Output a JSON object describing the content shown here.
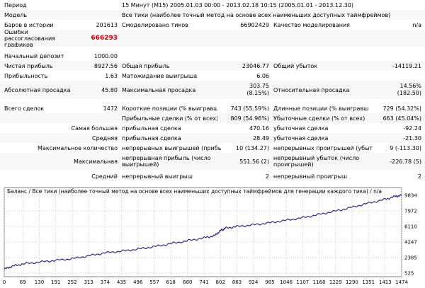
{
  "report": {
    "period_label": "Период",
    "period_value": "15 Минут (M15) 2005.01.03 00:00 - 2013.02.18 10:15 (2005.01.01 - 2013.12.30)",
    "model_label": "Модель",
    "model_value": "Все тики (наиболее точный метод на основе всех наименьших доступных таймфреймов)",
    "bars_label": "Баров в истории",
    "bars_value": "201613",
    "ticks_label": "Смоделировано тиков",
    "ticks_value": "66902429",
    "quality_label": "Качество моделирования",
    "quality_value": "n/a",
    "errors_label": "Ошибки рассогласования графиков",
    "errors_value": "666293",
    "deposit_label": "Начальный депозит",
    "deposit_value": "1000.00",
    "net_profit_label": "Чистая прибыль",
    "net_profit_value": "8927.56",
    "gross_profit_label": "Общая прибыль",
    "gross_profit_value": "23046.77",
    "gross_loss_label": "Общий убыток",
    "gross_loss_value": "-14119.21",
    "profit_factor_label": "Прибыльность",
    "profit_factor_value": "1.63",
    "expected_payoff_label": "Матожидание выигрыша",
    "expected_payoff_value": "6.06",
    "abs_drawdown_label": "Абсолютная просадка",
    "abs_drawdown_value": "45.80",
    "max_drawdown_label": "Максимальная просадка",
    "max_drawdown_value1": "303.75",
    "max_drawdown_value2": "(8.15%)",
    "rel_drawdown_label": "Относительная просадка",
    "rel_drawdown_value1": "14.56%",
    "rel_drawdown_value2": "(182.50)",
    "total_trades_label": "Всего сделок",
    "total_trades_value": "1472",
    "short_label": "Короткие позиции (% выигравших)",
    "short_value": "743 (55.59%)",
    "long_label": "Длинные позиции (% выигравших)",
    "long_value": "729 (54.32%)",
    "profit_trades_label": "Прибыльные сделки (% от всех)",
    "profit_trades_value": "809 (54.96%)",
    "loss_trades_label": "Убыточные сделки (% от всех)",
    "loss_trades_value": "663 (45.04%)",
    "largest_label": "Самая большая",
    "largest_profit_label": "прибыльная сделка",
    "largest_profit_value": "470.16",
    "largest_loss_label": "убыточная сделка",
    "largest_loss_value": "-92.24",
    "average_label": "Средняя",
    "average_profit_label": "прибыльная сделка",
    "average_profit_value": "28.49",
    "average_loss_label": "убыточная сделка",
    "average_loss_value": "-21.30",
    "max_count_label": "Максимальное количество",
    "max_cons_wins_label": "непрерывных выигрышей (прибыль)",
    "max_cons_wins_value": "10 (134.27)",
    "max_cons_losses_label": "непрерывных проигрышей (убыток)",
    "max_cons_losses_value": "9 (-113.30)",
    "maximal_label": "Максимальная",
    "max_cons_profit_label": "непрерывная прибыль (число выигрышей)",
    "max_cons_profit_value": "551.56 (2)",
    "max_cons_loss_label": "непрерывный убыток (число проигрышей)",
    "max_cons_loss_value": "-226.78 (5)",
    "avg_cons_label": "Средний",
    "avg_cons_wins_label": "непрерывный выигрыш",
    "avg_cons_wins_value": "2",
    "avg_cons_losses_label": "непрерывный проигрыш",
    "avg_cons_losses_value": "2"
  },
  "chart_data": {
    "type": "line",
    "title": "Баланс / Все тики (наиболее точный метод на основе всех наименьших доступных таймфреймов для генерации каждого тика) / n/a",
    "y_ticks": [
      "9834",
      "7972",
      "6110",
      "4247",
      "2385",
      "525"
    ],
    "x_ticks": [
      "0",
      "69",
      "130",
      "191",
      "252",
      "313",
      "374",
      "435",
      "496",
      "557",
      "618",
      "680",
      "741",
      "802",
      "863",
      "924",
      "985",
      "1046",
      "1107",
      "1168",
      "1229",
      "1290",
      "1351",
      "1413",
      "1474"
    ],
    "xlim": [
      0,
      1474
    ],
    "ylim": [
      525,
      9834
    ],
    "line_color": "#2c2c8c",
    "series": [
      {
        "x": [
          0,
          30,
          69,
          130,
          191,
          252,
          313,
          374,
          435,
          496,
          557,
          618,
          680,
          741,
          780,
          802,
          820,
          863,
          924,
          985,
          1046,
          1107,
          1168,
          1229,
          1290,
          1351,
          1413,
          1450,
          1474
        ],
        "y": [
          1000,
          1350,
          1620,
          1850,
          2050,
          2250,
          2600,
          2950,
          3150,
          3400,
          3700,
          4050,
          4400,
          4750,
          5000,
          5600,
          5900,
          6100,
          6300,
          6550,
          6850,
          7150,
          7550,
          7950,
          8400,
          8900,
          9350,
          9700,
          9834
        ]
      }
    ]
  }
}
